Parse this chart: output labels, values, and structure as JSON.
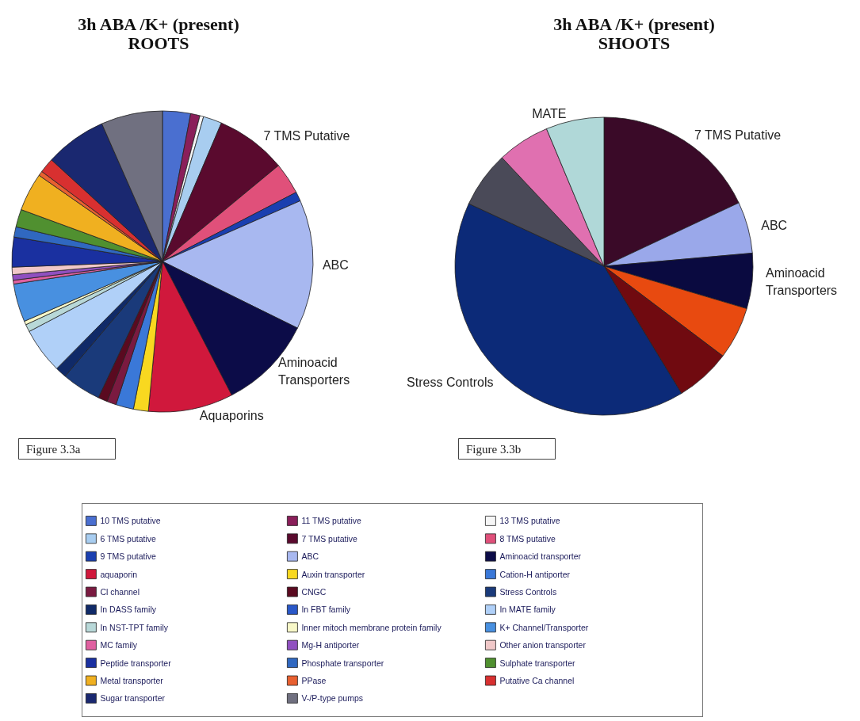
{
  "chart_data": [
    {
      "type": "pie",
      "title": "3h ABA /K+ (present)",
      "subtitle": "ROOTS",
      "categories": [
        "10 TMS putative",
        "11 TMS putative",
        "13 TMS putative",
        "6 TMS putative",
        "7 TMS putative",
        "8 TMS putative",
        "9 TMS putative",
        "ABC",
        "Aminoacid transporter",
        "aquaporin",
        "Auxin transporter",
        "Cation-H antiporter",
        "Cl channel",
        "CNGC",
        "Stress Controls",
        "In DASS family",
        "In FBT family",
        "In MATE family",
        "In NST-TPT family",
        "Inner mitoch membrane protein family",
        "K+ Channel/Transporter",
        "MC family",
        "Mg-H antiporter",
        "Other anion transporter",
        "Peptide transporter",
        "Phosphate transporter",
        "Sulphate transporter",
        "Metal transporter",
        "PPase",
        "Putative Ca channel",
        "Sugar transporter",
        "V-/P-type pumps"
      ],
      "values": [
        3.0,
        1.0,
        0.4,
        2.0,
        7.6,
        3.4,
        1.0,
        13.9,
        10.1,
        9.1,
        1.6,
        1.9,
        1.0,
        1.0,
        4.2,
        1.2,
        null,
        4.9,
        0.8,
        0.4,
        4.1,
        0.4,
        0.6,
        0.8,
        3.2,
        1.1,
        1.9,
        4.1,
        0.5,
        1.6,
        6.6,
        6.6
      ],
      "colors": [
        "#4a6fd0",
        "#8a1f5a",
        "#f6f6f6",
        "#a8cdf0",
        "#5a0a2e",
        "#e0507a",
        "#1a3fb0",
        "#a8b8f0",
        "#0c0c48",
        "#d0183c",
        "#f8d820",
        "#3a78d8",
        "#7a1a40",
        "#5a0a20",
        "#1a3a7a",
        "#102a68",
        "#2a58c8",
        "#b0d0f8",
        "#b8d8d8",
        "#f8f8c8",
        "#4890e0",
        "#e060a0",
        "#9050c0",
        "#f0c8c8",
        "#1a30a0",
        "#3068c0",
        "#509030",
        "#f0b020",
        "#e86030",
        "#d83030",
        "#1a2870",
        "#707080"
      ],
      "annotations": [
        {
          "text": "7 TMS Putative",
          "x": "7 TMS putative"
        },
        {
          "text": "ABC",
          "x": "ABC"
        },
        {
          "text": "Aminoacid Transporters",
          "x": "Aminoacid transporter"
        },
        {
          "text": "Aquaporins",
          "x": "aquaporin"
        },
        "Figure 3.3a"
      ],
      "legend": "bottom"
    },
    {
      "type": "pie",
      "title": "3h ABA /K+ (present)",
      "subtitle": "SHOOTS",
      "categories": [
        "7 TMS Putative",
        "ABC",
        "Aminoacid Transporters",
        null,
        null,
        "Stress Controls",
        null,
        null,
        "MATE"
      ],
      "values": [
        18.0,
        5.6,
        6.0,
        5.7,
        6.0,
        40.6,
        6.1,
        5.7,
        6.3
      ],
      "colors": [
        "#3a0a28",
        "#9aa8ea",
        "#0a0a40",
        "#e84a10",
        "#700a10",
        "#0c2a78",
        "#4a4a58",
        "#e070b0",
        "#b0d8d8"
      ],
      "annotations": [
        "Figure 3.3b"
      ],
      "legend": false
    }
  ]
}
